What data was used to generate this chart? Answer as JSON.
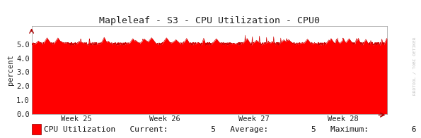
{
  "title": "Mapleleaf - S3 - CPU Utilization - CPU0",
  "ylabel": "percent",
  "yticks": [
    0.0,
    1.0,
    2.0,
    3.0,
    4.0,
    5.0
  ],
  "ylim": [
    0.0,
    6.3
  ],
  "xlabel_ticks": [
    "Week 25",
    "Week 26",
    "Week 27",
    "Week 28"
  ],
  "x_tick_positions": [
    0.125,
    0.375,
    0.625,
    0.875
  ],
  "legend_label": "CPU Utilization",
  "legend_current": "5",
  "legend_average": "5",
  "legend_maximum": "6",
  "area_color": "#ff0000",
  "line_color": "#cc0000",
  "background_color": "#ffffff",
  "plot_bg_color": "#ffffff",
  "grid_color": "#cccccc",
  "title_color": "#222222",
  "label_color": "#222222",
  "watermark": "RRDTOOL / TOBI OETIKER",
  "base_value": 5.0,
  "noise_amplitude": 0.12
}
